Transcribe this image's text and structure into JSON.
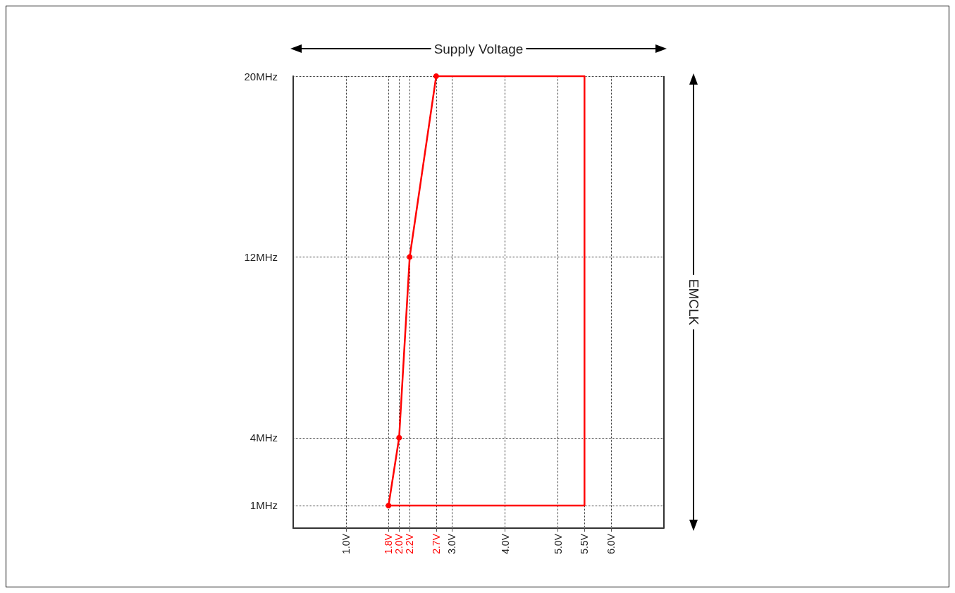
{
  "chart_data": {
    "type": "line",
    "xlabel": "Supply Voltage",
    "ylabel": "EMCLK",
    "xlim": [
      0,
      7
    ],
    "xticks": [
      {
        "value": 1.0,
        "label": "1.0V"
      },
      {
        "value": 1.8,
        "label": "1.8V"
      },
      {
        "value": 2.0,
        "label": "2.0V"
      },
      {
        "value": 2.2,
        "label": "2.2V"
      },
      {
        "value": 2.7,
        "label": "2.7V"
      },
      {
        "value": 3.0,
        "label": "3.0V"
      },
      {
        "value": 4.0,
        "label": "4.0V"
      },
      {
        "value": 5.0,
        "label": "5.0V"
      },
      {
        "value": 5.5,
        "label": "5.5V"
      },
      {
        "value": 6.0,
        "label": "6.0V"
      }
    ],
    "ylim": [
      0,
      20
    ],
    "yticks": [
      {
        "value": 1,
        "label": "1MHz"
      },
      {
        "value": 4,
        "label": "4MHz"
      },
      {
        "value": 12,
        "label": "12MHz"
      },
      {
        "value": 20,
        "label": "20MHz"
      }
    ],
    "grid": true,
    "line_style": "solid",
    "series": [
      {
        "color": "#ff0000",
        "marker": "circle",
        "x": [
          1.8,
          2.0,
          2.2,
          2.7
        ],
        "values": [
          1,
          4,
          12,
          20
        ]
      },
      {
        "color": "#ff0000",
        "marker": "none",
        "x": [
          2.7,
          5.5,
          5.5,
          1.8
        ],
        "values": [
          20,
          20,
          1,
          1
        ]
      }
    ]
  }
}
